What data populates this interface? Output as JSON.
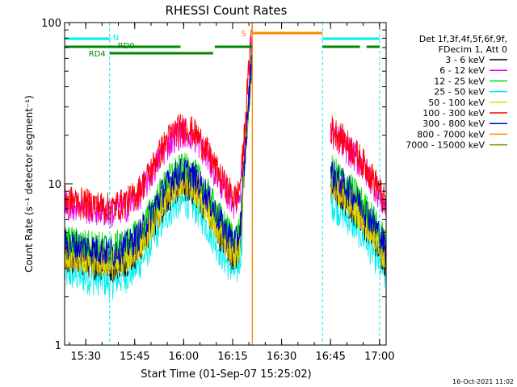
{
  "chart_data": {
    "type": "line",
    "title": "RHESSI Count Rates",
    "xlabel": "Start Time (01-Sep-07 15:25:02)",
    "ylabel": "Count Rate (s⁻¹ detector segment⁻¹)",
    "y_scale": "log",
    "ylim": [
      1,
      100
    ],
    "xlim": [
      "15:25:02",
      "17:02:00"
    ],
    "x_ticks": [
      "15:30",
      "15:45",
      "16:00",
      "16:15",
      "16:30",
      "16:45",
      "17:00"
    ],
    "x_tick_minutes": [
      4.97,
      19.97,
      34.97,
      49.97,
      64.97,
      79.97,
      94.97
    ],
    "y_ticks": [
      1,
      10,
      100
    ],
    "grid": false,
    "legend_position": "right",
    "legend_header": [
      "Det 1f,3f,4f,5f,6f,9f,",
      "FDecim 1, Att 0"
    ],
    "series": [
      {
        "name": "3 - 6 keV",
        "color": "#000000",
        "base": 0.7
      },
      {
        "name": "6 - 12 keV",
        "color": "#ee00ee",
        "base": 1.5
      },
      {
        "name": "12 - 25 keV",
        "color": "#00dd00",
        "base": 0.9
      },
      {
        "name": "25 - 50 keV",
        "color": "#00eeee",
        "base": 0.55
      },
      {
        "name": "50 - 100 keV",
        "color": "#dddd00",
        "base": 0.72
      },
      {
        "name": "100 - 300 keV",
        "color": "#ff0000",
        "base": 1.6
      },
      {
        "name": "300 - 800 keV",
        "color": "#0000cc",
        "base": 0.85
      },
      {
        "name": "800 - 7000 keV",
        "color": "#ff8800",
        "base": 0.75
      },
      {
        "name": "7000 - 15000 keV",
        "color": "#888800",
        "base": 0.74
      }
    ],
    "intervals": [
      {
        "label": "N",
        "color": "#00eeee",
        "segments": [
          [
            -1.5,
            12.3
          ],
          [
            77.5,
            95.0
          ]
        ]
      },
      {
        "label": "RD0",
        "color": "#008800",
        "segments": [
          [
            -1.5,
            34.0
          ],
          [
            44.5,
            56.0
          ],
          [
            77.5,
            89.0
          ],
          [
            91.0,
            95.0
          ]
        ]
      },
      {
        "label": "RD4",
        "color": "#008800",
        "segments": [
          [
            12.3,
            44.0
          ]
        ]
      },
      {
        "label": "S",
        "color": "#ff8800",
        "segments": [
          [
            56.0,
            77.5
          ]
        ]
      }
    ],
    "vertical_markers": [
      {
        "minute": 12.3,
        "color": "#00eeee",
        "style": "dashed"
      },
      {
        "minute": 56.0,
        "color": "#ff8800",
        "style": "solid"
      },
      {
        "minute": 77.5,
        "color": "#00eeee",
        "style": "dashed"
      },
      {
        "minute": 95.0,
        "color": "#00eeee",
        "style": "dashed"
      }
    ],
    "data_gap_minutes": [
      56.2,
      80.0
    ],
    "footer": "16-Oct-2021 11:02"
  }
}
